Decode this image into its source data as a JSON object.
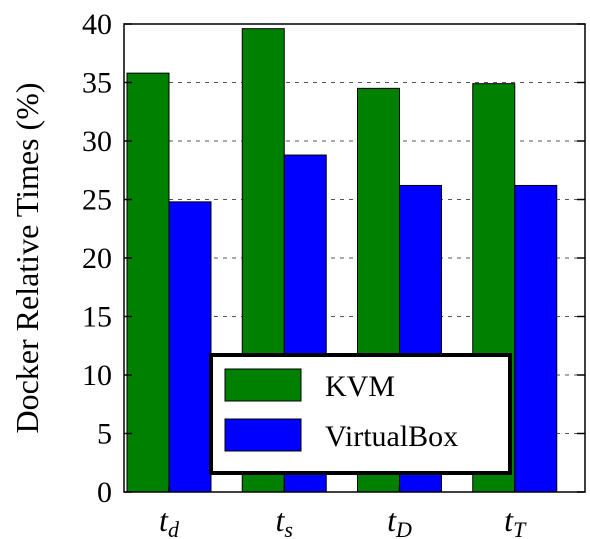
{
  "chart_data": {
    "type": "bar",
    "ylabel": "Docker Relative Times (%)",
    "ylim": [
      0,
      40
    ],
    "yticks": [
      0,
      5,
      10,
      15,
      20,
      25,
      30,
      35,
      40
    ],
    "grid": "horizontal dashed",
    "legend_position": "lower-center",
    "categories": [
      {
        "base": "t",
        "sub": "d"
      },
      {
        "base": "t",
        "sub": "s"
      },
      {
        "base": "t",
        "sub": "D"
      },
      {
        "base": "t",
        "sub": "T"
      }
    ],
    "series": [
      {
        "name": "KVM",
        "color": "#008000",
        "values": [
          35.8,
          39.6,
          34.5,
          34.9
        ]
      },
      {
        "name": "VirtualBox",
        "color": "#0000ff",
        "values": [
          24.8,
          28.8,
          26.2,
          26.2
        ]
      }
    ]
  }
}
